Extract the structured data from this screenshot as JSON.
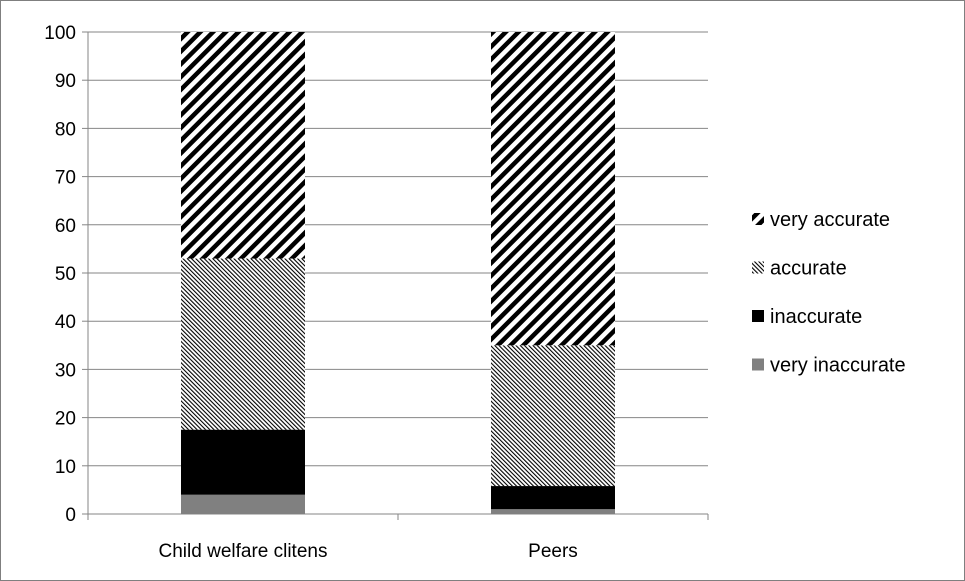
{
  "chart_data": {
    "type": "bar",
    "stacked": true,
    "categories": [
      "Child welfare clitens",
      "Peers"
    ],
    "series": [
      {
        "name": "very inaccurate",
        "values": [
          4,
          1
        ],
        "pattern": "solid-gray",
        "color": "#808080"
      },
      {
        "name": "inaccurate",
        "values": [
          13.5,
          4.8
        ],
        "pattern": "solid-black",
        "color": "#000000"
      },
      {
        "name": "accurate",
        "values": [
          35.5,
          29.2
        ],
        "pattern": "fine-diagonal",
        "color": "#000000"
      },
      {
        "name": "very accurate",
        "values": [
          47,
          65
        ],
        "pattern": "wide-diagonal",
        "color": "#000000"
      }
    ],
    "ylim": [
      0,
      100
    ],
    "yticks": [
      "0",
      "10",
      "20",
      "30",
      "40",
      "50",
      "60",
      "70",
      "80",
      "90",
      "100"
    ],
    "grid": true,
    "legend_position": "right",
    "legend_order": [
      "very accurate",
      "accurate",
      "inaccurate",
      "very inaccurate"
    ]
  }
}
